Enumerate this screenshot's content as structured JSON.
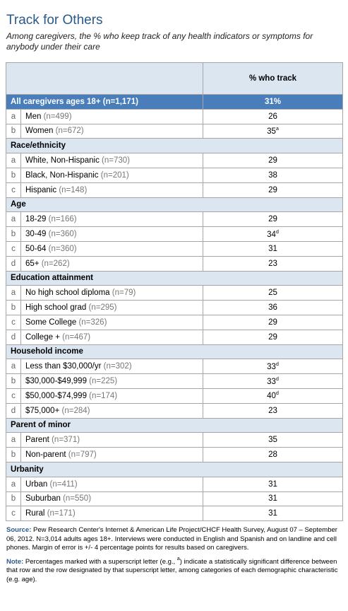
{
  "title": "Track for Others",
  "subtitle": "Among caregivers, the % who keep track of any health indicators or symptoms for anybody under their care",
  "table": {
    "column_header": "% who track",
    "total": {
      "label": "All caregivers ages 18+ (n=1,171)",
      "value": "31%"
    },
    "sections": [
      {
        "rows": [
          {
            "letter": "a",
            "label": "Men",
            "n": "(n=499)",
            "value": 26
          },
          {
            "letter": "b",
            "label": "Women",
            "n": "(n=672)",
            "value": 35,
            "sup": "a"
          }
        ]
      },
      {
        "title": "Race/ethnicity",
        "rows": [
          {
            "letter": "a",
            "label": "White, Non-Hispanic",
            "n": "(n=730)",
            "value": 29
          },
          {
            "letter": "b",
            "label": "Black, Non-Hispanic",
            "n": "(n=201)",
            "value": 38
          },
          {
            "letter": "c",
            "label": "Hispanic",
            "n": "(n=148)",
            "value": 29
          }
        ]
      },
      {
        "title": "Age",
        "rows": [
          {
            "letter": "a",
            "label": "18-29",
            "n": "(n=166)",
            "value": 29
          },
          {
            "letter": "b",
            "label": "30-49",
            "n": "(n=360)",
            "value": 34,
            "sup": "d"
          },
          {
            "letter": "c",
            "label": "50-64",
            "n": "(n=360)",
            "value": 31
          },
          {
            "letter": "d",
            "label": "65+",
            "n": "(n=262)",
            "value": 23
          }
        ]
      },
      {
        "title": "Education attainment",
        "rows": [
          {
            "letter": "a",
            "label": "No high school diploma",
            "n": "(n=79)",
            "value": 25
          },
          {
            "letter": "b",
            "label": "High school grad",
            "n": "(n=295)",
            "value": 36
          },
          {
            "letter": "c",
            "label": "Some College",
            "n": "(n=326)",
            "value": 29
          },
          {
            "letter": "d",
            "label": "College +",
            "n": "(n=467)",
            "value": 29
          }
        ]
      },
      {
        "title": "Household income",
        "rows": [
          {
            "letter": "a",
            "label": "Less than $30,000/yr",
            "n": "(n=302)",
            "value": 33,
            "sup": "d"
          },
          {
            "letter": "b",
            "label": "$30,000-$49,999",
            "n": "(n=225)",
            "value": 33,
            "sup": "d"
          },
          {
            "letter": "c",
            "label": "$50,000-$74,999",
            "n": "(n=174)",
            "value": 40,
            "sup": "d"
          },
          {
            "letter": "d",
            "label": "$75,000+",
            "n": "(n=284)",
            "value": 23
          }
        ]
      },
      {
        "title": "Parent of minor",
        "rows": [
          {
            "letter": "a",
            "label": "Parent",
            "n": "(n=371)",
            "value": 35
          },
          {
            "letter": "b",
            "label": "Non-parent",
            "n": "(n=797)",
            "value": 28
          }
        ]
      },
      {
        "title": "Urbanity",
        "rows": [
          {
            "letter": "a",
            "label": "Urban",
            "n": "(n=411)",
            "value": 31
          },
          {
            "letter": "b",
            "label": "Suburban",
            "n": "(n=550)",
            "value": 31
          },
          {
            "letter": "c",
            "label": "Rural",
            "n": "(n=171)",
            "value": 31
          }
        ]
      }
    ]
  },
  "source": {
    "label": "Source:",
    "text": "Pew Research Center's Internet & American Life Project/CHCF Health Survey, August 07 – September 06, 2012. N=3,014 adults ages 18+. Interviews were conducted in English and Spanish and on landline and cell phones.  Margin of error is +/- 4 percentage points for results based on caregivers."
  },
  "note": {
    "label": "Note:",
    "text_before": "Percentages marked with a superscript letter (e.g., ",
    "sup": "a",
    "text_after": ") indicate a statistically significant difference between that row and the row designated by that superscript letter, among categories of each demographic characteristic (e.g. age)."
  }
}
